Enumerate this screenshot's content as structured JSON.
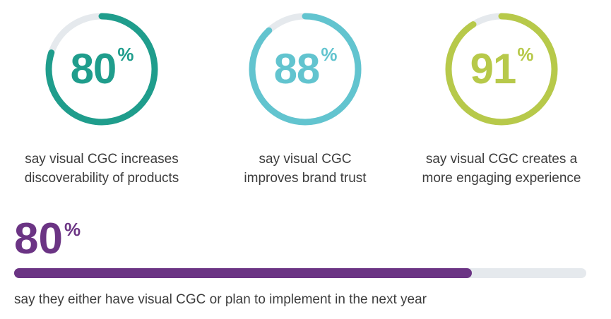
{
  "chart_data": [
    {
      "type": "donut",
      "track_color": "#e5e9ed",
      "items": [
        {
          "value": 80,
          "number": "80",
          "unit": "%",
          "color": "#1f9d8c",
          "caption_lines": [
            "say visual CGC increases",
            "discoverability of products"
          ]
        },
        {
          "value": 88,
          "number": "88",
          "unit": "%",
          "color": "#62c4cf",
          "caption_lines": [
            "say visual CGC",
            "improves brand trust"
          ]
        },
        {
          "value": 91,
          "number": "91",
          "unit": "%",
          "color": "#b7c94a",
          "caption_lines": [
            "say visual CGC creates a",
            "more engaging experience"
          ]
        }
      ]
    },
    {
      "type": "progress-bar",
      "value": 80,
      "number": "80",
      "unit": "%",
      "color": "#6b3484",
      "track_color": "#e5e9ed",
      "caption": "say they either have visual CGC or plan to implement in the next year"
    }
  ]
}
